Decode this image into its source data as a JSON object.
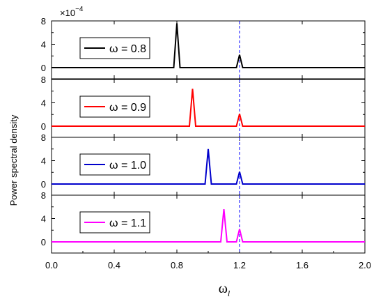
{
  "chart_data": {
    "type": "line",
    "ylabel": "Power spectral density",
    "xlabel": "ω",
    "xlabel_subscript": "l",
    "y_multiplier": "×10",
    "y_multiplier_exponent": "−4",
    "xlim": [
      0.0,
      2.0
    ],
    "xticks": [
      "0.0",
      "0.4",
      "0.8",
      "1.2",
      "1.6",
      "2.0"
    ],
    "ylim": [
      0,
      8
    ],
    "yticks": [
      "0",
      "4",
      "8"
    ],
    "reference_line_x": 1.2,
    "reference_line_color": "#0000ff",
    "panels": [
      {
        "legend": "ω = 0.8",
        "color": "#000000",
        "x": [
          0.0,
          0.78,
          0.8,
          0.82,
          1.18,
          1.2,
          1.22,
          2.0
        ],
        "y": [
          0,
          0,
          7.6,
          0,
          0,
          2.2,
          0,
          0
        ]
      },
      {
        "legend": "ω = 0.9",
        "color": "#ff0000",
        "x": [
          0.0,
          0.88,
          0.9,
          0.92,
          1.18,
          1.2,
          1.22,
          2.0
        ],
        "y": [
          0,
          0,
          6.4,
          0,
          0,
          2.1,
          0,
          0
        ]
      },
      {
        "legend": "ω = 1.0",
        "color": "#0000cc",
        "x": [
          0.0,
          0.98,
          1.0,
          1.02,
          1.18,
          1.2,
          1.22,
          2.0
        ],
        "y": [
          0,
          0,
          6.0,
          0,
          0,
          2.1,
          0,
          0
        ]
      },
      {
        "legend": "ω = 1.1",
        "color": "#ff00ff",
        "x": [
          0.0,
          1.08,
          1.1,
          1.12,
          1.18,
          1.2,
          1.22,
          2.0
        ],
        "y": [
          0,
          0,
          5.6,
          0,
          0,
          2.2,
          0,
          0
        ]
      }
    ]
  }
}
